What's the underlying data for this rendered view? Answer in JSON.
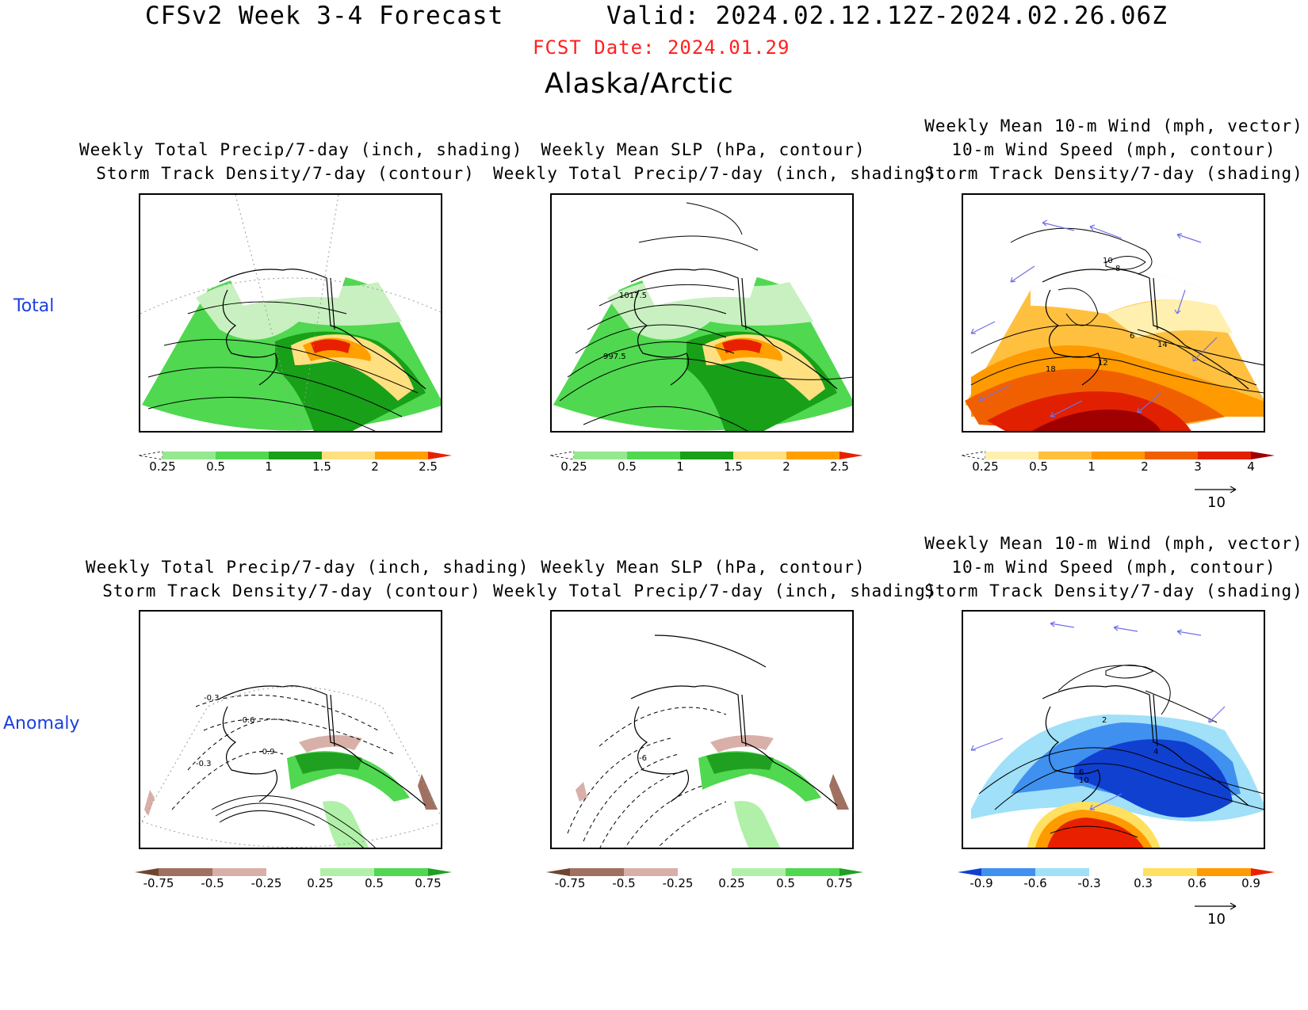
{
  "header": {
    "title": "CFSv2 Week 3-4 Forecast",
    "valid": "Valid: 2024.02.12.12Z-2024.02.26.06Z",
    "fcst_date": "FCST Date: 2024.01.29",
    "region": "Alaska/Arctic",
    "fcst_color": "#ff2020"
  },
  "rows": [
    {
      "label": "Total",
      "label_color": "#1a40e0"
    },
    {
      "label": "Anomaly",
      "label_color": "#1a40e0"
    }
  ],
  "panels": {
    "precip_title": [
      "Weekly Total Precip/7-day (inch, shading)",
      "Storm Track Density/7-day (contour)"
    ],
    "slp_title": [
      "Weekly Mean SLP (hPa, contour)",
      "Weekly Total Precip/7-day (inch, shading)"
    ],
    "wind_title": [
      "Weekly Mean 10-m Wind (mph, vector)",
      "10-m Wind Speed (mph, contour)",
      "Storm Track Density/7-day (shading)"
    ]
  },
  "contour_labels": {
    "slp_total": [
      "1017.5",
      "997.5"
    ],
    "wind_total": [
      "10",
      "8",
      "6",
      "14",
      "12",
      "18"
    ],
    "precip_anom": [
      "-0.3",
      "-0.6",
      "-0.9",
      "-0.3"
    ],
    "slp_anom": [
      "-6"
    ],
    "wind_anom": [
      "2",
      "4",
      "6",
      "10"
    ]
  },
  "colorbars": {
    "precip_total": {
      "ticks": [
        "0.25",
        "0.5",
        "1",
        "1.5",
        "2",
        "2.5"
      ],
      "colors": [
        "#c8f0c0",
        "#96e890",
        "#50d850",
        "#18a018",
        "#ffe080",
        "#ffa000",
        "#e82000"
      ]
    },
    "storm_total": {
      "ticks": [
        "0.25",
        "0.5",
        "1",
        "2",
        "3",
        "4"
      ],
      "colors": [
        "#ffffff",
        "#fff0b0",
        "#ffc040",
        "#ff9a00",
        "#f06000",
        "#e02000",
        "#a00000"
      ]
    },
    "precip_anom": {
      "ticks": [
        "-0.75",
        "-0.5",
        "-0.25",
        "0.25",
        "0.5",
        "0.75"
      ],
      "colors": [
        "#6e4630",
        "#a07060",
        "#d8b0a8",
        "#ffffff",
        "#b0f0a8",
        "#50d850",
        "#20a020"
      ]
    },
    "storm_anom": {
      "ticks": [
        "-0.9",
        "-0.6",
        "-0.3",
        "0.3",
        "0.6",
        "0.9"
      ],
      "colors": [
        "#1040d0",
        "#4090f0",
        "#a0e0f8",
        "#ffffff",
        "#ffe060",
        "#ff9a00",
        "#e82000"
      ]
    }
  },
  "wind_reference": {
    "value": "10",
    "arrow_color": "#000000"
  },
  "vector_color": "#7070e8"
}
